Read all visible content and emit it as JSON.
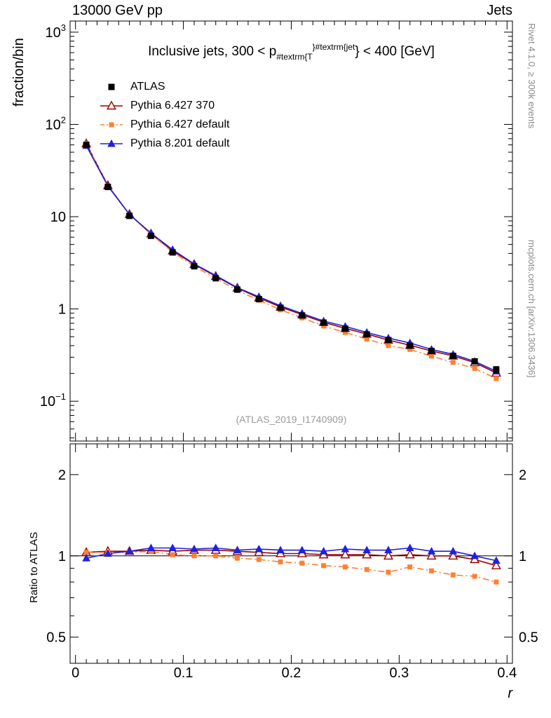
{
  "header": {
    "left": "13000 GeV pp",
    "right": "Jets"
  },
  "title": {
    "prefix": "Inclusive jets, 300 < p",
    "sub": "#textrm{T",
    "sup": "}#textrm{jet",
    "suffix": "} < 400 [GeV]"
  },
  "watermark": "(ATLAS_2019_I1740909)",
  "side_texts": {
    "top_rotated": "Rivet 4.1.0, ≥ 300k events",
    "bottom_rotated": "mcplots.cern.ch [arXiv:1306.3436]"
  },
  "chart_data": {
    "type": "line",
    "xlabel": "r",
    "xlim": [
      -0.005,
      0.405
    ],
    "xticks": [
      0,
      0.1,
      0.2,
      0.3,
      0.4
    ],
    "x_minor_step": 0.01,
    "x_values": [
      0.01,
      0.03,
      0.05,
      0.07,
      0.09,
      0.11,
      0.13,
      0.15,
      0.17,
      0.19,
      0.21,
      0.23,
      0.25,
      0.27,
      0.29,
      0.31,
      0.33,
      0.35,
      0.37,
      0.39
    ],
    "top_panel": {
      "ylabel": "fraction/bin",
      "yscale": "log",
      "ylim": [
        0.037,
        1320
      ],
      "ytick_exponents": [
        -1,
        0,
        1,
        2,
        3
      ]
    },
    "ratio_panel": {
      "ylabel": "Ratio to ATLAS",
      "yscale": "log",
      "ylim": [
        0.4,
        2.6
      ],
      "yticks": [
        0.5,
        1,
        2
      ],
      "yminors": [
        0.6,
        0.7,
        0.8,
        0.9
      ],
      "ref_line": 1
    },
    "series": [
      {
        "name": "ATLAS",
        "role": "reference-data",
        "color": "#000000",
        "marker": "square-filled",
        "marker_size": 9,
        "line": "none",
        "values": [
          60,
          21,
          10.2,
          6.2,
          4.1,
          2.9,
          2.15,
          1.62,
          1.28,
          1.03,
          0.85,
          0.71,
          0.61,
          0.53,
          0.46,
          0.4,
          0.35,
          0.31,
          0.27,
          0.22
        ],
        "frac_errors": [
          0.05,
          0.04,
          0.03,
          0.03,
          0.03,
          0.03,
          0.03,
          0.03,
          0.03,
          0.03,
          0.03,
          0.03,
          0.03,
          0.03,
          0.03,
          0.04,
          0.04,
          0.05,
          0.06,
          0.08
        ]
      },
      {
        "name": "Pythia 6.427 370",
        "color": "#990000",
        "marker": "triangle-open",
        "marker_size": 10,
        "line": "solid",
        "ratio_to_atlas": [
          1.03,
          1.04,
          1.04,
          1.05,
          1.04,
          1.05,
          1.05,
          1.04,
          1.03,
          1.02,
          1.02,
          1.01,
          1.01,
          1.01,
          1.0,
          1.01,
          1.0,
          1.0,
          0.97,
          0.92
        ]
      },
      {
        "name": "Pythia 6.427 default",
        "color": "#ff8030",
        "marker": "square-filled",
        "marker_size": 7,
        "line": "dashdot",
        "ratio_to_atlas": [
          1.03,
          1.03,
          1.03,
          1.04,
          1.01,
          1.0,
          1.0,
          0.98,
          0.97,
          0.95,
          0.94,
          0.92,
          0.91,
          0.89,
          0.87,
          0.91,
          0.88,
          0.85,
          0.84,
          0.8
        ]
      },
      {
        "name": "Pythia 8.201 default",
        "color": "#2020e0",
        "marker": "triangle-filled",
        "marker_size": 10,
        "line": "solid",
        "ratio_to_atlas": [
          0.98,
          1.02,
          1.04,
          1.07,
          1.07,
          1.06,
          1.07,
          1.05,
          1.06,
          1.05,
          1.05,
          1.04,
          1.06,
          1.05,
          1.05,
          1.07,
          1.04,
          1.04,
          1.0,
          0.96
        ]
      }
    ]
  }
}
